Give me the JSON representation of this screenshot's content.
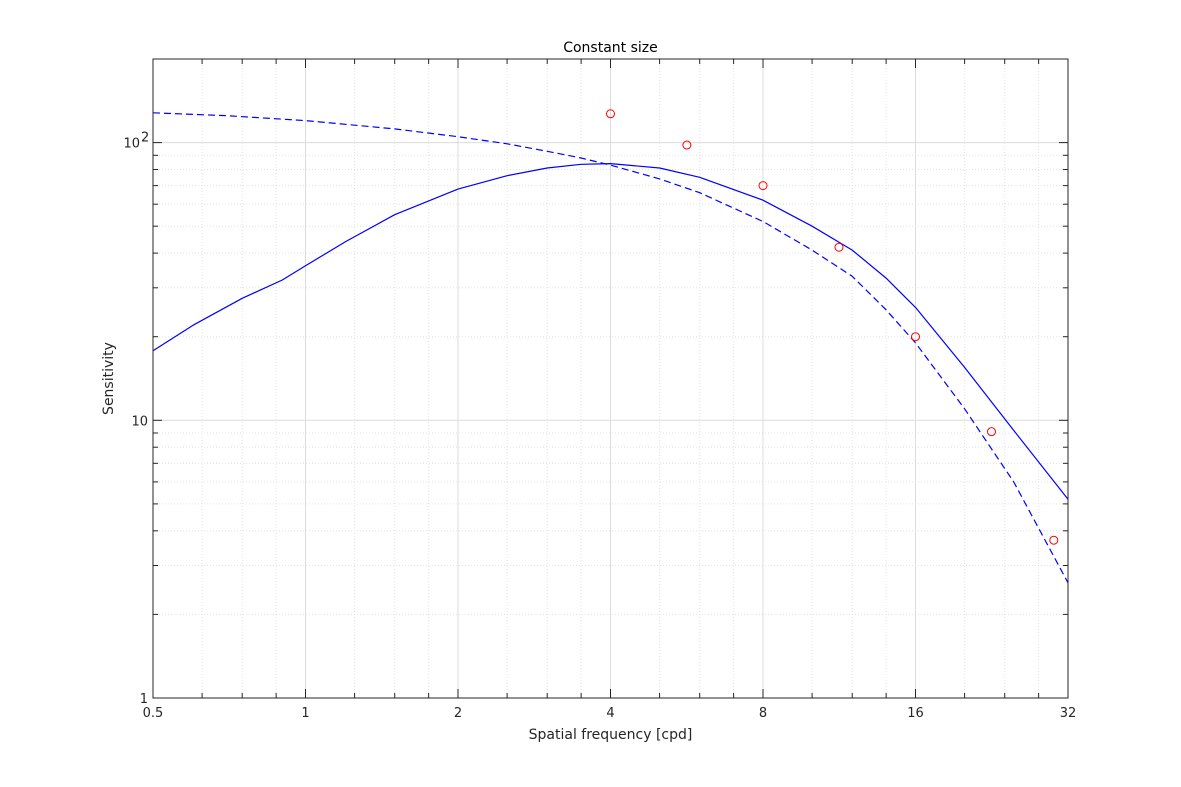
{
  "chart_data": {
    "type": "line",
    "title": "Constant size",
    "xlabel": "Spatial frequency [cpd]",
    "ylabel": "Sensitivity",
    "xscale": "log2",
    "yscale": "log10",
    "xlim": [
      0.5,
      32
    ],
    "ylim": [
      1,
      200
    ],
    "x_ticks": [
      {
        "value": 0.5,
        "label": "0.5"
      },
      {
        "value": 1,
        "label": "1"
      },
      {
        "value": 2,
        "label": "2"
      },
      {
        "value": 4,
        "label": "4"
      },
      {
        "value": 8,
        "label": "8"
      },
      {
        "value": 16,
        "label": "16"
      },
      {
        "value": 32,
        "label": "32"
      }
    ],
    "y_ticks": [
      {
        "value": 1,
        "label": "1",
        "sup": ""
      },
      {
        "value": 10,
        "label": "10",
        "sup": ""
      },
      {
        "value": 100,
        "label": "10",
        "sup": "2"
      }
    ],
    "grid": true,
    "minor_grid": true,
    "series": [
      {
        "style": "solid",
        "color": "#0000ff",
        "x": [
          0.5,
          0.6,
          0.75,
          0.9,
          1.0,
          1.2,
          1.5,
          2.0,
          2.5,
          3.0,
          3.5,
          4.0,
          5.0,
          6.0,
          8.0,
          10.0,
          12.0,
          14.0,
          16.0,
          20.0,
          25.0,
          32.0
        ],
        "y": [
          17.8,
          22.0,
          27.5,
          32.0,
          36.0,
          44.0,
          55.0,
          68.0,
          76.0,
          81.0,
          83.5,
          84.0,
          81.0,
          75.0,
          62.0,
          50.0,
          41.0,
          32.5,
          25.5,
          15.5,
          9.2,
          5.2
        ]
      },
      {
        "style": "dashed",
        "color": "#0000ff",
        "x": [
          0.5,
          0.7,
          1.0,
          1.5,
          2.0,
          2.5,
          3.0,
          3.5,
          4.0,
          5.0,
          6.0,
          8.0,
          10.0,
          12.0,
          14.0,
          16.0,
          20.0,
          25.0,
          32.0
        ],
        "y": [
          128.0,
          125.0,
          120.0,
          112.0,
          105.0,
          99.0,
          93.0,
          88.0,
          83.0,
          74.0,
          66.0,
          52.0,
          41.0,
          33.0,
          25.0,
          19.0,
          11.0,
          6.0,
          2.6
        ]
      },
      {
        "style": "markers",
        "marker": "circle",
        "color": "#ff0000",
        "x": [
          4.0,
          5.66,
          8.0,
          11.3,
          16.0,
          22.6,
          30.0
        ],
        "y": [
          127.0,
          98.0,
          70.0,
          42.0,
          20.0,
          9.1,
          3.7
        ]
      }
    ]
  }
}
